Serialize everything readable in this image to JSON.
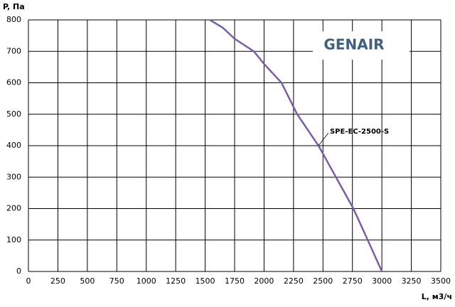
{
  "chart_data": {
    "type": "line",
    "y_label": "P, Па",
    "x_label": "L, м3/ч",
    "brand": "GENAIR",
    "x": [
      1540,
      1650,
      1750,
      1913,
      2000,
      2148,
      2281,
      2462,
      2610,
      2758,
      2880,
      3000
    ],
    "series": [
      {
        "name": "SPE-EC-2500-S",
        "color": "#7b5ea7",
        "values": [
          800,
          775,
          740,
          700,
          660,
          600,
          500,
          400,
          300,
          200,
          100,
          0
        ]
      }
    ],
    "xlim": [
      0,
      3500
    ],
    "xticks": [
      0,
      250,
      500,
      750,
      1000,
      1250,
      1500,
      1750,
      2000,
      2250,
      2500,
      2750,
      3000,
      3250,
      3500
    ],
    "ylim": [
      0,
      800
    ],
    "yticks": [
      0,
      100,
      200,
      300,
      400,
      500,
      600,
      700,
      800
    ],
    "grid": true
  }
}
